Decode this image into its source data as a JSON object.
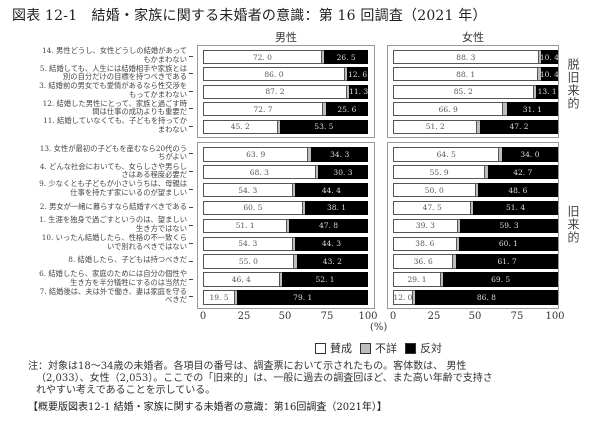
{
  "title": "図表 12-1　結婚・家族に関する未婚者の意識：第 16 回調査（2021 年）",
  "panels": {
    "male": "男性",
    "female": "女性"
  },
  "groups": {
    "top": "脱旧来的",
    "bottom": "旧来的"
  },
  "legend": {
    "agree": "賛成",
    "unknown": "不詳",
    "disagree": "反対"
  },
  "axis": {
    "ticks": [
      "0",
      "25",
      "50",
      "75",
      "100"
    ],
    "unit": "(%)"
  },
  "note": {
    "line1": "注：対象は18～34歳の未婚者。各項目の番号は、調査票において示されたもの。客体数は、 男性",
    "line2": "（2,033）、女性（2,053）。ここでの「旧来的」は、一般に過去の調査回ほど、また高い年齢で支持さ",
    "line3": "れやすい考えであることを示している。"
  },
  "caption": "【概要版図表12-1 結婚・家族に関する未婚者の意識：第16回調査（2021年）】",
  "colors": {
    "agree": "#ffffff",
    "unknown": "#bdbdbd",
    "disagree": "#000000"
  },
  "chart_data": {
    "type": "bar",
    "stacked": true,
    "orientation": "horizontal",
    "title": "結婚・家族に関する未婚者の意識：第 16 回調査（2021 年）",
    "xlabel": "(%)",
    "xlim": [
      0,
      100
    ],
    "xticks": [
      0,
      25,
      50,
      75,
      100
    ],
    "legend": [
      "賛成",
      "不詳",
      "反対"
    ],
    "legend_position": "bottom",
    "groups": [
      {
        "name": "脱旧来的",
        "categories": [
          "14. 男性どうし、女性どうしの結婚があってもかまわない",
          "5. 結婚しても、人生には結婚相手や家族とは別の自分だけの目標を持つべきである",
          "3. 結婚前の男女でも愛情があるなら性交渉をもってかまわない",
          "12. 結婚した男性にとって、家族と過ごす時間は仕事の成功よりも重要だ",
          "11. 結婚していなくても、子どもを持ってかまわない"
        ],
        "male": {
          "賛成": [
            72.0,
            86.0,
            87.2,
            72.7,
            45.2
          ],
          "反対": [
            26.5,
            12.6,
            11.3,
            25.6,
            53.5
          ]
        },
        "female": {
          "賛成": [
            88.3,
            88.1,
            85.2,
            66.9,
            51.2
          ],
          "反対": [
            10.4,
            10.4,
            13.1,
            31.1,
            47.2
          ]
        }
      },
      {
        "name": "旧来的",
        "categories": [
          "13. 女性が最初の子どもを産むなら20代のうちがよい",
          "4. どんな社会においても、女らしさや男らしさはある程度必要だ",
          "9. 少なくとも子どもが小さいうちは、母親は仕事を持たず家にいるのが望ましい",
          "2. 男女が一緒に暮らすなら結婚すべきである",
          "1. 生涯を独身で過ごすというのは、望ましい生き方ではない",
          "10. いったん結婚したら、性格の不一致くらいで別れるべきではない",
          "8. 結婚したら、子どもは持つべきだ",
          "6. 結婚したら、家庭のためには自分の個性や生き方を半分犠牲にするのは当然だ",
          "7. 結婚後は、夫は外で働き、妻は家庭を守るべきだ"
        ],
        "male": {
          "賛成": [
            63.9,
            68.3,
            54.3,
            60.5,
            51.1,
            54.3,
            55.0,
            46.4,
            19.5
          ],
          "反対": [
            34.3,
            30.3,
            44.4,
            38.1,
            47.8,
            44.3,
            43.2,
            52.1,
            79.1
          ]
        },
        "female": {
          "賛成": [
            64.5,
            55.9,
            50.0,
            47.5,
            39.3,
            38.6,
            36.6,
            29.1,
            12.0
          ],
          "反対": [
            34.0,
            42.7,
            48.6,
            51.4,
            59.3,
            60.1,
            61.7,
            69.5,
            86.8
          ]
        }
      }
    ]
  },
  "rows_top": [
    {
      "label": "14. 男性どうし、女性どうしの結婚があって\nもかまわない",
      "m": [
        72.0,
        26.5
      ],
      "f": [
        88.3,
        10.4
      ]
    },
    {
      "label": "5. 結婚しても、人生には結婚相手や家族とは\n別の自分だけの目標を持つべきである",
      "m": [
        86.0,
        12.6
      ],
      "f": [
        88.1,
        10.4
      ]
    },
    {
      "label": "3. 結婚前の男女でも愛情があるなら性交渉を\nもってかまわない",
      "m": [
        87.2,
        11.3
      ],
      "f": [
        85.2,
        13.1
      ]
    },
    {
      "label": "12. 結婚した男性にとって、家族と過ごす時\n間は仕事の成功よりも重要だ",
      "m": [
        72.7,
        25.6
      ],
      "f": [
        66.9,
        31.1
      ]
    },
    {
      "label": "11. 結婚していなくても、子どもを持ってか\nまわない",
      "m": [
        45.2,
        53.5
      ],
      "f": [
        51.2,
        47.2
      ]
    }
  ],
  "rows_bottom": [
    {
      "label": "13. 女性が最初の子どもを産むなら20代のう\nちがよい",
      "m": [
        63.9,
        34.3
      ],
      "f": [
        64.5,
        34.0
      ]
    },
    {
      "label": "4. どんな社会においても、女らしさや男らし\nさはある程度必要だ",
      "m": [
        68.3,
        30.3
      ],
      "f": [
        55.9,
        42.7
      ]
    },
    {
      "label": "9. 少なくとも子どもが小さいうちは、母親は\n仕事を持たず家にいるのが望ましい",
      "m": [
        54.3,
        44.4
      ],
      "f": [
        50.0,
        48.6
      ]
    },
    {
      "label": "2. 男女が一緒に暮らすなら結婚すべきである",
      "m": [
        60.5,
        38.1
      ],
      "f": [
        47.5,
        51.4
      ]
    },
    {
      "label": "1. 生涯を独身で過ごすというのは、望ましい\n生き方ではない",
      "m": [
        51.1,
        47.8
      ],
      "f": [
        39.3,
        59.3
      ]
    },
    {
      "label": "10. いったん結婚したら、性格の不一致くら\nいで別れるべきではない",
      "m": [
        54.3,
        44.3
      ],
      "f": [
        38.6,
        60.1
      ]
    },
    {
      "label": "8. 結婚したら、子どもは持つべきだ",
      "m": [
        55.0,
        43.2
      ],
      "f": [
        36.6,
        61.7
      ]
    },
    {
      "label": "6. 結婚したら、家庭のためには自分の個性や\n生き方を半分犠牲にするのは当然だ",
      "m": [
        46.4,
        52.1
      ],
      "f": [
        29.1,
        69.5
      ]
    },
    {
      "label": "7. 結婚後は、夫は外で働き、妻は家庭を守る\nべきだ",
      "m": [
        19.5,
        79.1
      ],
      "f": [
        12.0,
        86.8
      ]
    }
  ]
}
